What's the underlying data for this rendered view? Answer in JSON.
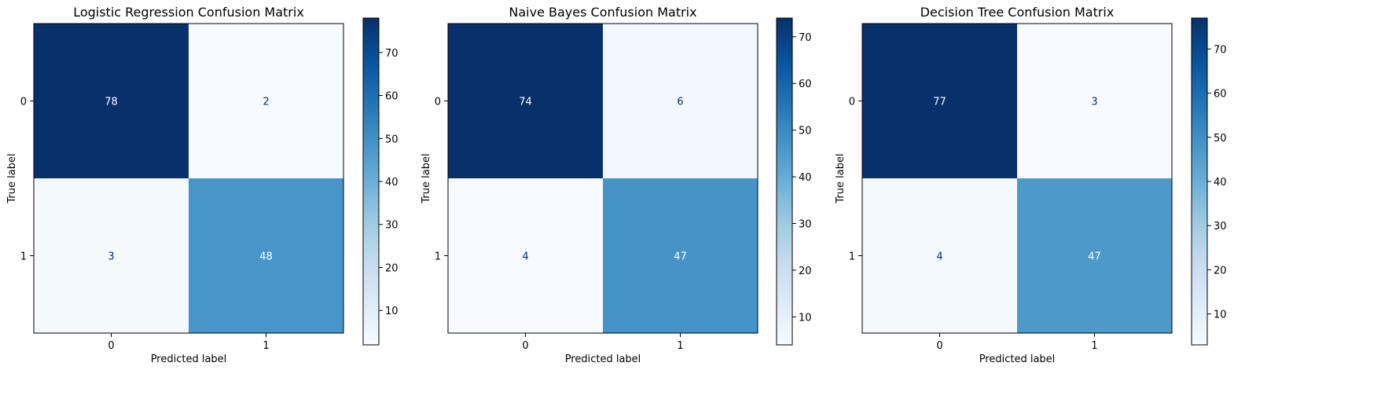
{
  "chart_data": [
    {
      "type": "heatmap",
      "title": "Logistic Regression Confusion Matrix",
      "xlabel": "Predicted label",
      "ylabel": "True label",
      "x_categories": [
        "0",
        "1"
      ],
      "y_categories": [
        "0",
        "1"
      ],
      "matrix": [
        [
          78,
          2
        ],
        [
          3,
          48
        ]
      ],
      "colormap": "Blues",
      "colorbar": {
        "range": [
          2,
          78
        ],
        "ticks": [
          10,
          20,
          30,
          40,
          50,
          60,
          70
        ]
      }
    },
    {
      "type": "heatmap",
      "title": "Naive Bayes Confusion Matrix",
      "xlabel": "Predicted label",
      "ylabel": "True label",
      "x_categories": [
        "0",
        "1"
      ],
      "y_categories": [
        "0",
        "1"
      ],
      "matrix": [
        [
          74,
          6
        ],
        [
          4,
          47
        ]
      ],
      "colormap": "Blues",
      "colorbar": {
        "range": [
          4,
          74
        ],
        "ticks": [
          10,
          20,
          30,
          40,
          50,
          60,
          70
        ]
      }
    },
    {
      "type": "heatmap",
      "title": "Decision Tree Confusion Matrix",
      "xlabel": "Predicted label",
      "ylabel": "True label",
      "x_categories": [
        "0",
        "1"
      ],
      "y_categories": [
        "0",
        "1"
      ],
      "matrix": [
        [
          77,
          3
        ],
        [
          4,
          47
        ]
      ],
      "colormap": "Blues",
      "colorbar": {
        "range": [
          3,
          77
        ],
        "ticks": [
          10,
          20,
          30,
          40,
          50,
          60,
          70
        ]
      }
    }
  ]
}
